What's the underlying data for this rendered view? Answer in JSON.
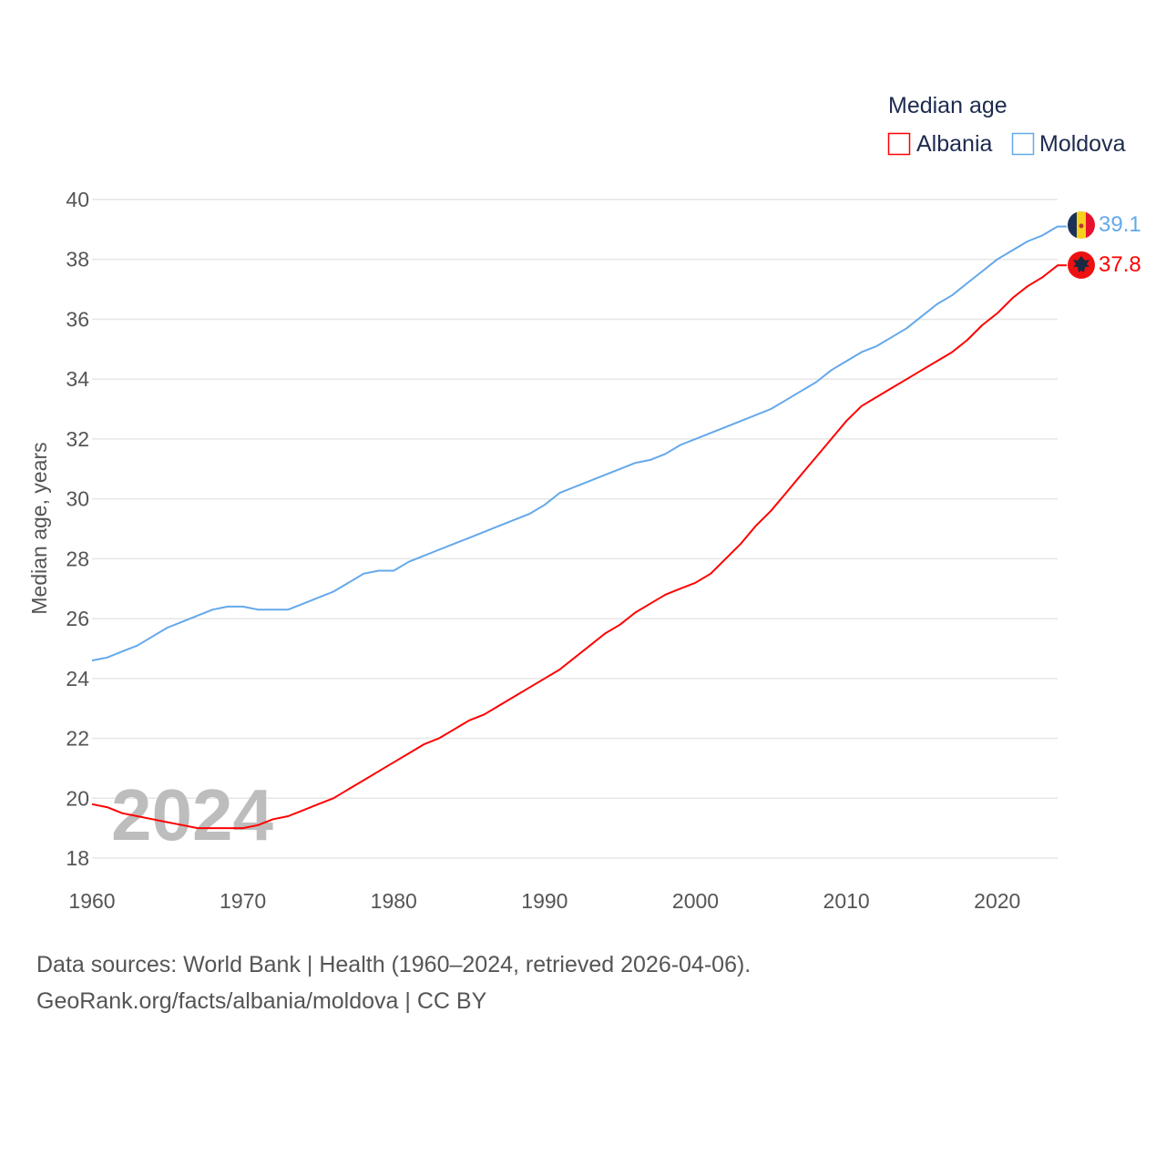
{
  "chart_data": {
    "type": "line",
    "title": "Median age",
    "xlabel": "",
    "ylabel": "Median age, years",
    "xlim": [
      1960,
      2024
    ],
    "ylim": [
      18,
      40
    ],
    "yticks": [
      18,
      20,
      22,
      24,
      26,
      28,
      30,
      32,
      34,
      36,
      38,
      40
    ],
    "xticks": [
      1960,
      1970,
      1980,
      1990,
      2000,
      2010,
      2020
    ],
    "grid": true,
    "legend_position": "top-right",
    "watermark_year": "2024",
    "x_start": 1960,
    "series": [
      {
        "name": "Albania",
        "color": "#ff0000",
        "end_label": "37.8",
        "values": [
          19.8,
          19.7,
          19.5,
          19.4,
          19.3,
          19.2,
          19.1,
          19.0,
          19.0,
          19.0,
          19.0,
          19.1,
          19.3,
          19.4,
          19.6,
          19.8,
          20.0,
          20.3,
          20.6,
          20.9,
          21.2,
          21.5,
          21.8,
          22.0,
          22.3,
          22.6,
          22.8,
          23.1,
          23.4,
          23.7,
          24.0,
          24.3,
          24.7,
          25.1,
          25.5,
          25.8,
          26.2,
          26.5,
          26.8,
          27.0,
          27.2,
          27.5,
          28.0,
          28.5,
          29.1,
          29.6,
          30.2,
          30.8,
          31.4,
          32.0,
          32.6,
          33.1,
          33.4,
          33.7,
          34.0,
          34.3,
          34.6,
          34.9,
          35.3,
          35.8,
          36.2,
          36.7,
          37.1,
          37.4,
          37.8
        ]
      },
      {
        "name": "Moldova",
        "color": "#64a8eb",
        "end_label": "39.1",
        "values": [
          24.6,
          24.7,
          24.9,
          25.1,
          25.4,
          25.7,
          25.9,
          26.1,
          26.3,
          26.4,
          26.4,
          26.3,
          26.3,
          26.3,
          26.5,
          26.7,
          26.9,
          27.2,
          27.5,
          27.6,
          27.6,
          27.9,
          28.1,
          28.3,
          28.5,
          28.7,
          28.9,
          29.1,
          29.3,
          29.5,
          29.8,
          30.2,
          30.4,
          30.6,
          30.8,
          31.0,
          31.2,
          31.3,
          31.5,
          31.8,
          32.0,
          32.2,
          32.4,
          32.6,
          32.8,
          33.0,
          33.3,
          33.6,
          33.9,
          34.3,
          34.6,
          34.9,
          35.1,
          35.4,
          35.7,
          36.1,
          36.5,
          36.8,
          37.2,
          37.6,
          38.0,
          38.3,
          38.6,
          38.8,
          39.1
        ]
      }
    ]
  },
  "footer": {
    "line1": "Data sources: World Bank | Health (1960–2024, retrieved 2026-04-06).",
    "line2": "GeoRank.org/facts/albania/moldova | CC BY"
  }
}
